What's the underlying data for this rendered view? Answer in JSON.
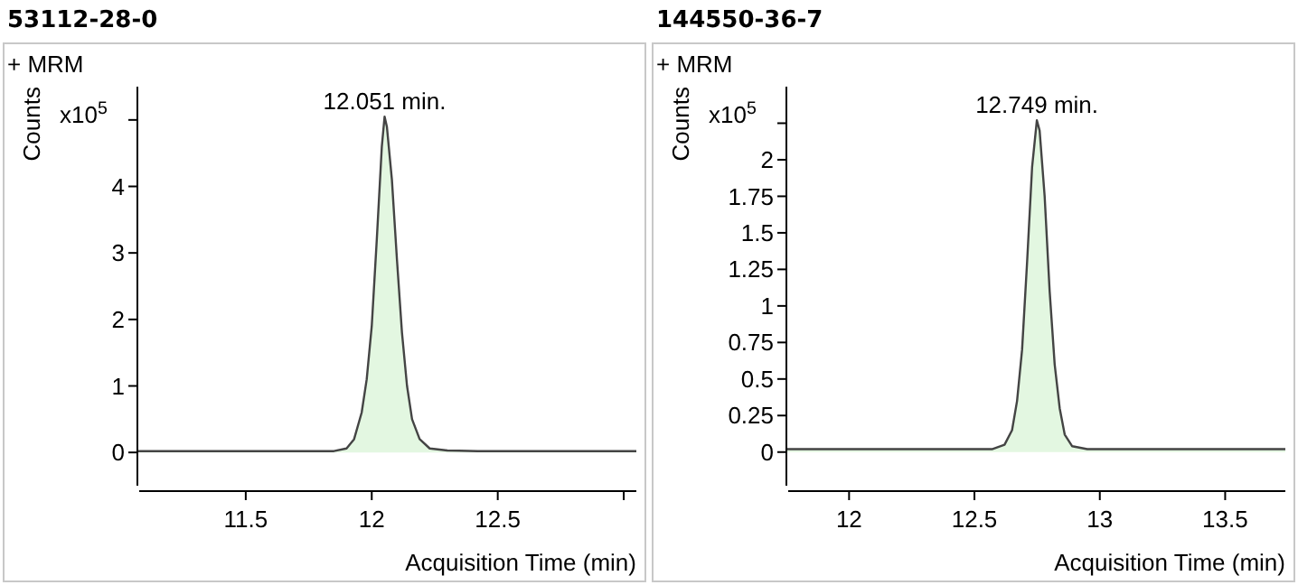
{
  "chart_data": [
    {
      "type": "area",
      "title": "53112-28-0",
      "subtitle": "+ MRM",
      "xlabel": "Acquisition Time (min)",
      "ylabel": "Counts",
      "annotations": [
        "x10$^{5}$",
        {
          "text": "12.051 min.",
          "x": 12.051,
          "y": 5.05
        }
      ],
      "xlim": [
        11.07,
        13.05
      ],
      "xticks": [
        11.5,
        12,
        12.5,
        {
          "value": 13,
          "label": null
        }
      ],
      "ylim": [
        -0.5,
        5.5
      ],
      "yticks": [
        0,
        1,
        2,
        3,
        4,
        {
          "value": 5,
          "label": null
        }
      ],
      "grid": false,
      "series": [
        {
          "color": "#e3f7e1",
          "x": [
            11.07,
            11.85,
            11.9,
            11.93,
            11.96,
            11.98,
            12.0,
            12.02,
            12.04,
            12.051,
            12.06,
            12.08,
            12.1,
            12.12,
            12.14,
            12.16,
            12.19,
            12.23,
            12.3,
            12.42,
            13.05
          ],
          "values": [
            0.02,
            0.02,
            0.06,
            0.2,
            0.6,
            1.1,
            1.9,
            3.2,
            4.6,
            5.05,
            4.9,
            4.1,
            2.9,
            1.8,
            1.0,
            0.5,
            0.2,
            0.06,
            0.03,
            0.02,
            0.02
          ]
        }
      ]
    },
    {
      "type": "area",
      "title": "144550-36-7",
      "subtitle": "+ MRM",
      "xlabel": "Acquisition Time (min)",
      "ylabel": "Counts",
      "annotations": [
        "x10$^{5}$",
        {
          "text": "12.749 min.",
          "x": 12.749,
          "y": 2.27
        }
      ],
      "xlim": [
        11.75,
        13.74
      ],
      "xticks": [
        12,
        12.5,
        13,
        13.5
      ],
      "ylim": [
        -0.23,
        2.5
      ],
      "yticks": [
        0,
        0.25,
        0.5,
        0.75,
        1,
        1.25,
        1.5,
        1.75,
        2,
        {
          "value": 2.25,
          "label": null
        }
      ],
      "grid": false,
      "series": [
        {
          "color": "#e3f7e1",
          "x": [
            11.75,
            12.57,
            12.62,
            12.65,
            12.67,
            12.69,
            12.71,
            12.73,
            12.749,
            12.76,
            12.78,
            12.8,
            12.82,
            12.84,
            12.86,
            12.89,
            12.95,
            13.1,
            13.74
          ],
          "values": [
            0.02,
            0.02,
            0.05,
            0.15,
            0.35,
            0.7,
            1.3,
            1.95,
            2.27,
            2.2,
            1.75,
            1.1,
            0.6,
            0.3,
            0.12,
            0.04,
            0.02,
            0.02,
            0.02
          ]
        }
      ]
    }
  ]
}
